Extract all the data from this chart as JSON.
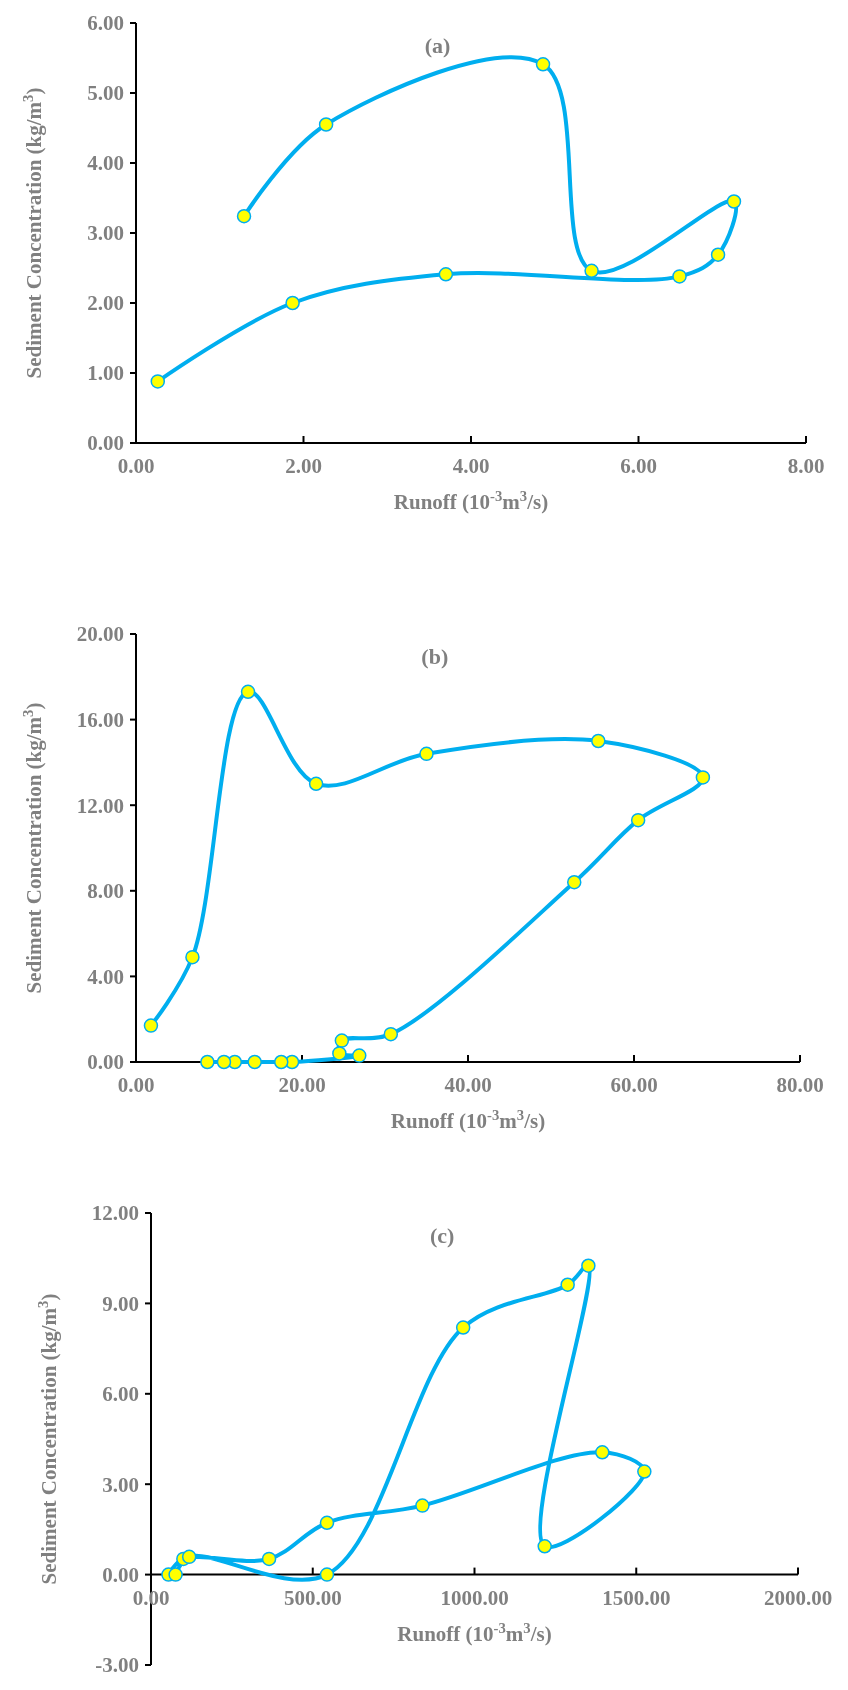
{
  "chart_data": [
    {
      "type": "line",
      "title": "(a)",
      "xlabel": "Runoff (10$^{-3}$m$^{3}$/s)",
      "ylabel": "Sediment Concentration (kg/m$^{3}$)",
      "xlim": [
        0,
        8
      ],
      "xticks": [
        {
          "value": 0,
          "label": "0.00"
        },
        {
          "value": 2,
          "label": "2.00"
        },
        {
          "value": 4,
          "label": "4.00"
        },
        {
          "value": 6,
          "label": "6.00"
        },
        {
          "value": 8,
          "label": "8.00"
        }
      ],
      "ylim": [
        0,
        6
      ],
      "yticks": [
        {
          "value": 0,
          "label": "0.00"
        },
        {
          "value": 1,
          "label": "1.00"
        },
        {
          "value": 2,
          "label": "2.00"
        },
        {
          "value": 3,
          "label": "3.00"
        },
        {
          "value": 4,
          "label": "4.00"
        },
        {
          "value": 5,
          "label": "5.00"
        },
        {
          "value": 6,
          "label": "6.00"
        }
      ],
      "grid": false,
      "marker": "circle",
      "line_style": "solid",
      "series": [
        {
          "color": "#00aeef",
          "x": [
            0.26,
            1.87,
            3.7,
            6.49,
            6.95,
            7.14,
            5.44,
            4.86,
            2.27,
            1.29
          ],
          "values": [
            0.88,
            2.0,
            2.41,
            2.38,
            2.69,
            3.45,
            2.46,
            5.41,
            4.55,
            3.24
          ]
        }
      ]
    },
    {
      "type": "line",
      "title": "(b)",
      "xlabel": "Runoff (10$^{-3}$m$^{3}$/s)",
      "ylabel": "Sediment Concentration (kg/m$^{3}$)",
      "xlim": [
        0,
        80
      ],
      "xticks": [
        {
          "value": 0,
          "label": "0.00"
        },
        {
          "value": 20,
          "label": "20.00"
        },
        {
          "value": 40,
          "label": "40.00"
        },
        {
          "value": 60,
          "label": "60.00"
        },
        {
          "value": 80,
          "label": "80.00"
        }
      ],
      "ylim": [
        0,
        20
      ],
      "yticks": [
        {
          "value": 0,
          "label": "0.00"
        },
        {
          "value": 4,
          "label": "4.00"
        },
        {
          "value": 8,
          "label": "8.00"
        },
        {
          "value": 12,
          "label": "12.00"
        },
        {
          "value": 16,
          "label": "16.00"
        },
        {
          "value": 20,
          "label": "20.00"
        }
      ],
      "grid": false,
      "marker": "circle",
      "line_style": "solid",
      "series": [
        {
          "color": "#00aeef",
          "x": [
            1.8,
            6.8,
            13.5,
            21.7,
            35.0,
            55.7,
            68.3,
            60.5,
            52.8,
            30.7,
            24.8,
            24.5,
            26.9,
            18.8,
            17.5,
            14.3,
            11.9,
            10.6,
            8.6
          ],
          "values": [
            1.7,
            4.9,
            17.3,
            13.0,
            14.4,
            15.0,
            13.3,
            11.3,
            8.4,
            1.3,
            1.0,
            0.4,
            0.3,
            0,
            0,
            0,
            0,
            0,
            0
          ]
        }
      ]
    },
    {
      "type": "line",
      "title": "(c)",
      "xlabel": "Runoff (10$^{-3}$m$^{3}$/s)",
      "ylabel": "Sediment Concentration (kg/m$^{3}$)",
      "xlim": [
        0,
        2000
      ],
      "xticks": [
        {
          "value": 0,
          "label": "0.00"
        },
        {
          "value": 500,
          "label": "500.00"
        },
        {
          "value": 1000,
          "label": "1000.00"
        },
        {
          "value": 1500,
          "label": "1500.00"
        },
        {
          "value": 2000,
          "label": "2000.00"
        }
      ],
      "ylim": [
        -3,
        12
      ],
      "yticks": [
        {
          "value": -3,
          "label": "-3.00"
        },
        {
          "value": 0,
          "label": "0.00"
        },
        {
          "value": 3,
          "label": "3.00"
        },
        {
          "value": 6,
          "label": "6.00"
        },
        {
          "value": 9,
          "label": "9.00"
        },
        {
          "value": 12,
          "label": "12.00"
        }
      ],
      "grid": false,
      "marker": "circle",
      "line_style": "solid",
      "series": [
        {
          "color": "#00aeef",
          "x": [
            54,
            100,
            365,
            544,
            839,
            1395,
            1525,
            1217,
            1352,
            1288,
            965,
            544,
            118,
            76
          ],
          "values": [
            0,
            0.52,
            0.52,
            1.72,
            2.29,
            4.06,
            3.42,
            0.94,
            10.25,
            9.62,
            8.2,
            0,
            0.59,
            0
          ]
        }
      ]
    }
  ]
}
